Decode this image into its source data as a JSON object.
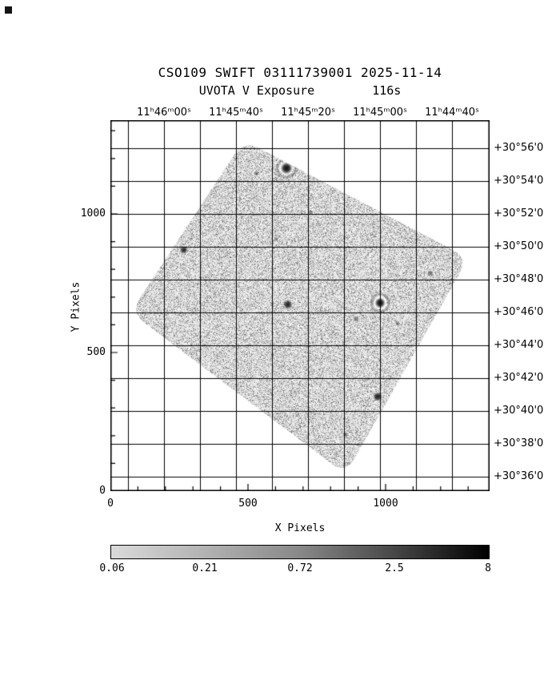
{
  "chart_data": {
    "type": "heatmap",
    "title": "CSO109 SWIFT 03111739001 2025-11-14",
    "instrument": "UVOTA V Exposure",
    "exposure": "116s",
    "xlabel": "X Pixels",
    "ylabel": "Y Pixels",
    "xlim": [
      0,
      1386
    ],
    "ylim": [
      0,
      1339
    ],
    "x_tick_labels": [
      "0",
      "500",
      "1000"
    ],
    "x_tick_values": [
      0,
      500,
      1000
    ],
    "y_tick_labels": [
      "0",
      "500",
      "1000"
    ],
    "y_tick_values": [
      0,
      500,
      1000
    ],
    "ra_tick_labels": [
      "11ʰ46ᵐ00ˢ",
      "11ʰ45ᵐ40ˢ",
      "11ʰ45ᵐ20ˢ",
      "11ʰ45ᵐ00ˢ",
      "11ʰ44ᵐ40ˢ"
    ],
    "dec_tick_labels": [
      "+30°56'0",
      "+30°54'0",
      "+30°52'0",
      "+30°50'0",
      "+30°48'0",
      "+30°46'0",
      "+30°44'0",
      "+30°42'0",
      "+30°40'0",
      "+30°38'0",
      "+30°36'0"
    ],
    "grid": true,
    "colorbar": {
      "scale": "log",
      "tick_labels": [
        "0.06",
        "0.21",
        "0.72",
        "2.5",
        "8"
      ],
      "tick_values": [
        0.06,
        0.21,
        0.72,
        2.5,
        8
      ],
      "stops": [
        "#dadada",
        "#b2b2b2",
        "#888888",
        "#474747",
        "#000000"
      ]
    },
    "footprint_corners": [
      [
        485,
        1266
      ],
      [
        1300,
        841
      ],
      [
        855,
        61
      ],
      [
        73,
        645
      ]
    ],
    "sources": [
      {
        "x": 640,
        "y": 1165,
        "r": 4.0,
        "a": 1.0,
        "halo": true
      },
      {
        "x": 980,
        "y": 679,
        "r": 3.5,
        "a": 1.0,
        "halo": true
      },
      {
        "x": 645,
        "y": 673,
        "r": 3.0,
        "a": 0.9,
        "halo": false
      },
      {
        "x": 267,
        "y": 870,
        "r": 2.6,
        "a": 0.85,
        "halo": false
      },
      {
        "x": 971,
        "y": 341,
        "r": 3.0,
        "a": 0.9,
        "halo": false
      },
      {
        "x": 1163,
        "y": 786,
        "r": 2.0,
        "a": 0.55,
        "halo": false
      },
      {
        "x": 892,
        "y": 621,
        "r": 2.0,
        "a": 0.5,
        "halo": false
      },
      {
        "x": 529,
        "y": 1147,
        "r": 1.6,
        "a": 0.5,
        "halo": false
      },
      {
        "x": 727,
        "y": 1006,
        "r": 1.6,
        "a": 0.45,
        "halo": false
      },
      {
        "x": 602,
        "y": 908,
        "r": 1.6,
        "a": 0.4,
        "halo": false
      },
      {
        "x": 1044,
        "y": 604,
        "r": 1.6,
        "a": 0.45,
        "halo": false
      },
      {
        "x": 590,
        "y": 491,
        "r": 1.5,
        "a": 0.4,
        "halo": false
      },
      {
        "x": 855,
        "y": 205,
        "r": 1.8,
        "a": 0.5,
        "halo": false
      },
      {
        "x": 1090,
        "y": 980,
        "r": 1.5,
        "a": 0.4,
        "halo": false
      }
    ]
  }
}
